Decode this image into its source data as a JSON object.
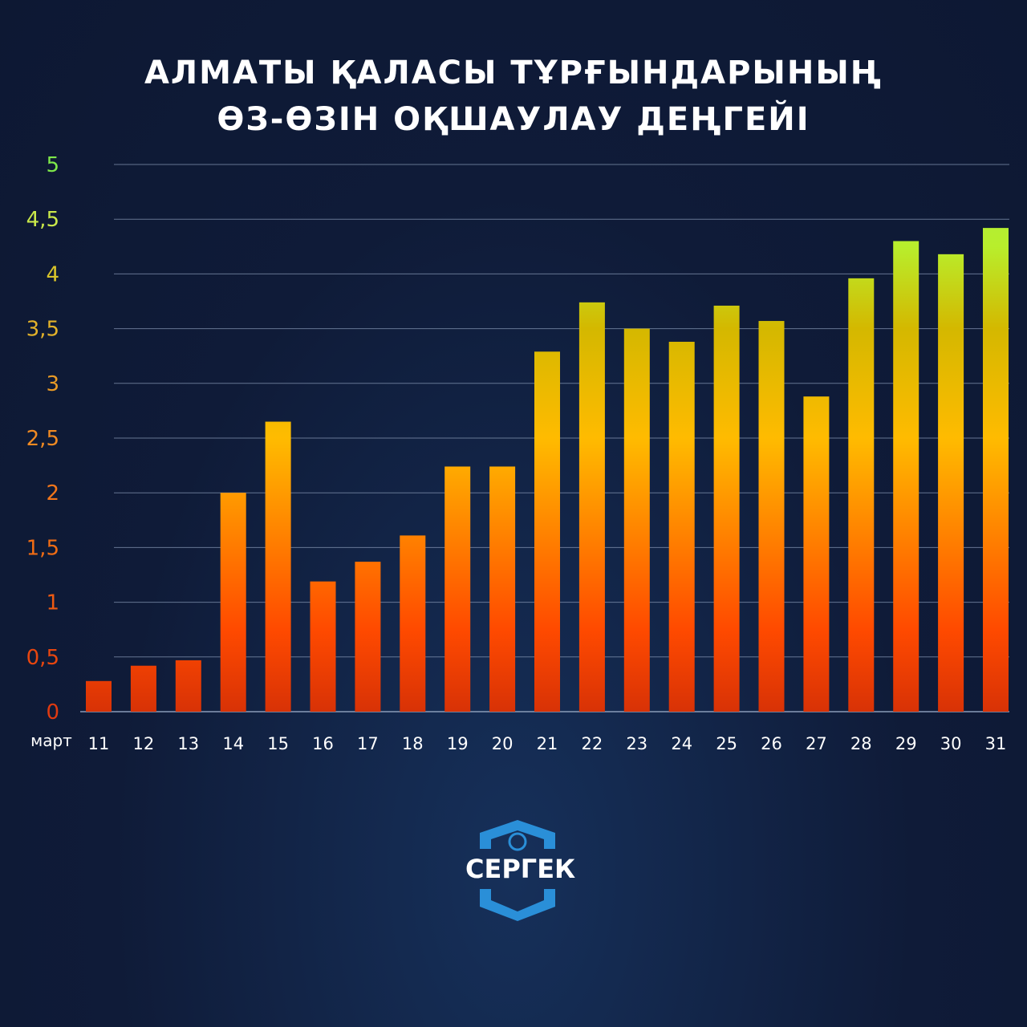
{
  "title_lines": [
    "АЛМАТЫ ҚАЛАСЫ ТҰРҒЫНДАРЫНЫҢ",
    "ӨЗ-ӨЗІН ОҚШАУЛАУ ДЕҢГЕЙІ"
  ],
  "brand": "СЕРГЕК",
  "colors": {
    "background": "#0f1b38",
    "bar_bottom": "#e23a06",
    "bar_mid": "#ffbb00",
    "bar_top": "#b5ee2a",
    "grid": "#8a9bb8",
    "logo": "#2a8fd8"
  },
  "chart_data": {
    "type": "bar",
    "title": "АЛМАТЫ ҚАЛАСЫ ТҰРҒЫНДАРЫНЫҢ ӨЗ-ӨЗІН ОҚШАУЛАУ ДЕҢГЕЙІ",
    "xlabel": "март",
    "ylabel": "",
    "categories": [
      "11",
      "12",
      "13",
      "14",
      "15",
      "16",
      "17",
      "18",
      "19",
      "20",
      "21",
      "22",
      "23",
      "24",
      "25",
      "26",
      "27",
      "28",
      "29",
      "30",
      "31"
    ],
    "values": [
      0.28,
      0.42,
      0.47,
      2.0,
      2.65,
      1.19,
      1.37,
      1.61,
      2.24,
      2.24,
      3.29,
      3.74,
      3.5,
      3.38,
      3.71,
      3.57,
      2.88,
      3.96,
      4.3,
      4.18,
      4.42
    ],
    "ylim": [
      0,
      5
    ],
    "yticks": [
      "0",
      "0,5",
      "1",
      "1,5",
      "2",
      "2,5",
      "3",
      "3,5",
      "4",
      "4,5",
      "5"
    ],
    "ytick_colors": [
      "#e03a10",
      "#e8460f",
      "#ee5a12",
      "#f06c14",
      "#f2761a",
      "#f08a22",
      "#e89a26",
      "#e3b22a",
      "#d9c42a",
      "#c9e84a",
      "#7ee84a"
    ],
    "grid": true,
    "legend": "none"
  }
}
